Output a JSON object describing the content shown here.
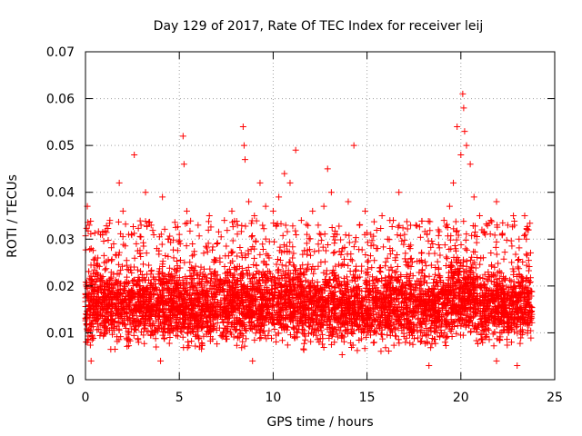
{
  "chart_data": {
    "type": "scatter",
    "title": "Day 129 of 2017, Rate Of TEC Index for receiver leij",
    "xlabel": "GPS time / hours",
    "ylabel": "ROTI / TECUs",
    "xlim": [
      0,
      25
    ],
    "ylim": [
      0,
      0.07
    ],
    "xticks": [
      0,
      5,
      10,
      15,
      20,
      25
    ],
    "xtick_labels": [
      "0",
      "5",
      "10",
      "15",
      "20",
      "25"
    ],
    "yticks": [
      0,
      0.01,
      0.02,
      0.03,
      0.04,
      0.05,
      0.06,
      0.07
    ],
    "ytick_labels": [
      "0",
      "0.01",
      "0.02",
      "0.03",
      "0.04",
      "0.05",
      "0.06",
      "0.07"
    ],
    "grid": true,
    "marker": "+",
    "color": "#ff0000",
    "series": [
      {
        "name": "ROTI",
        "points": [
          [
            0.1,
            0.037
          ],
          [
            0.2,
            0.033
          ],
          [
            0.3,
            0.028
          ],
          [
            0.5,
            0.022
          ],
          [
            0.8,
            0.031
          ],
          [
            1.0,
            0.025
          ],
          [
            1.3,
            0.034
          ],
          [
            1.5,
            0.029
          ],
          [
            1.8,
            0.042
          ],
          [
            2.0,
            0.036
          ],
          [
            2.3,
            0.031
          ],
          [
            2.6,
            0.048
          ],
          [
            2.9,
            0.027
          ],
          [
            3.2,
            0.04
          ],
          [
            3.5,
            0.033
          ],
          [
            3.8,
            0.028
          ],
          [
            4.1,
            0.039
          ],
          [
            4.4,
            0.03
          ],
          [
            4.7,
            0.026
          ],
          [
            5.0,
            0.031
          ],
          [
            5.2,
            0.052
          ],
          [
            5.25,
            0.046
          ],
          [
            5.4,
            0.036
          ],
          [
            5.7,
            0.029
          ],
          [
            6.0,
            0.033
          ],
          [
            6.3,
            0.027
          ],
          [
            6.6,
            0.035
          ],
          [
            7.0,
            0.029
          ],
          [
            7.4,
            0.034
          ],
          [
            7.8,
            0.036
          ],
          [
            8.1,
            0.033
          ],
          [
            8.4,
            0.054
          ],
          [
            8.45,
            0.05
          ],
          [
            8.5,
            0.047
          ],
          [
            8.7,
            0.038
          ],
          [
            9.0,
            0.035
          ],
          [
            9.3,
            0.042
          ],
          [
            9.6,
            0.037
          ],
          [
            10.0,
            0.036
          ],
          [
            10.3,
            0.039
          ],
          [
            10.6,
            0.044
          ],
          [
            10.9,
            0.042
          ],
          [
            11.2,
            0.049
          ],
          [
            11.5,
            0.034
          ],
          [
            11.8,
            0.031
          ],
          [
            12.1,
            0.036
          ],
          [
            12.4,
            0.033
          ],
          [
            12.7,
            0.037
          ],
          [
            12.9,
            0.045
          ],
          [
            13.1,
            0.04
          ],
          [
            13.4,
            0.031
          ],
          [
            13.7,
            0.028
          ],
          [
            14.0,
            0.038
          ],
          [
            14.3,
            0.05
          ],
          [
            14.6,
            0.033
          ],
          [
            14.9,
            0.036
          ],
          [
            15.2,
            0.031
          ],
          [
            15.5,
            0.028
          ],
          [
            15.8,
            0.035
          ],
          [
            16.1,
            0.03
          ],
          [
            16.4,
            0.034
          ],
          [
            16.7,
            0.04
          ],
          [
            17.0,
            0.031
          ],
          [
            17.3,
            0.028
          ],
          [
            17.6,
            0.033
          ],
          [
            17.9,
            0.027
          ],
          [
            18.2,
            0.031
          ],
          [
            18.5,
            0.029
          ],
          [
            18.8,
            0.032
          ],
          [
            19.1,
            0.034
          ],
          [
            19.4,
            0.037
          ],
          [
            19.6,
            0.042
          ],
          [
            19.8,
            0.054
          ],
          [
            20.0,
            0.048
          ],
          [
            20.1,
            0.061
          ],
          [
            20.15,
            0.058
          ],
          [
            20.2,
            0.053
          ],
          [
            20.3,
            0.05
          ],
          [
            20.5,
            0.046
          ],
          [
            20.7,
            0.039
          ],
          [
            21.0,
            0.035
          ],
          [
            21.3,
            0.031
          ],
          [
            21.6,
            0.034
          ],
          [
            21.9,
            0.038
          ],
          [
            22.2,
            0.031
          ],
          [
            22.5,
            0.033
          ],
          [
            22.8,
            0.035
          ],
          [
            23.1,
            0.03
          ],
          [
            23.4,
            0.035
          ],
          [
            23.6,
            0.032
          ],
          [
            0.3,
            0.004
          ],
          [
            4.0,
            0.004
          ],
          [
            8.9,
            0.004
          ],
          [
            18.3,
            0.003
          ],
          [
            21.9,
            0.004
          ],
          [
            23.0,
            0.003
          ]
        ]
      }
    ]
  }
}
